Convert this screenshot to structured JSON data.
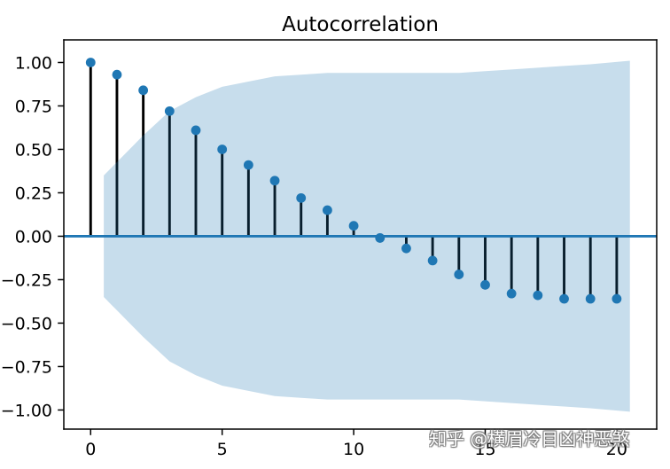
{
  "chart_data": {
    "type": "scatter",
    "stems": true,
    "title": "Autocorrelation",
    "grid": false,
    "xlim": [
      -1.02,
      21.52
    ],
    "ylim": [
      -1.11,
      1.13
    ],
    "xticks": [
      0,
      5,
      10,
      15,
      20
    ],
    "xtick_labels": [
      "0",
      "5",
      "10",
      "15",
      "20"
    ],
    "yticks": [
      1.0,
      0.75,
      0.5,
      0.25,
      0.0,
      -0.25,
      -0.5,
      -0.75,
      -1.0
    ],
    "ytick_labels": [
      "1.00",
      "0.75",
      "0.50",
      "0.25",
      "0.00",
      "−0.25",
      "−0.50",
      "−0.75",
      "−1.00"
    ],
    "x": [
      0,
      1,
      2,
      3,
      4,
      5,
      6,
      7,
      8,
      9,
      10,
      11,
      12,
      13,
      14,
      15,
      16,
      17,
      18,
      19,
      20
    ],
    "series": [
      {
        "values": [
          1.0,
          0.93,
          0.84,
          0.72,
          0.61,
          0.5,
          0.41,
          0.32,
          0.22,
          0.15,
          0.06,
          -0.01,
          -0.07,
          -0.14,
          -0.22,
          -0.28,
          -0.33,
          -0.34,
          -0.36,
          -0.36,
          -0.36
        ],
        "color": "#1f77b4",
        "stem_color": "#000000"
      }
    ],
    "zero_line": {
      "y": 0,
      "color": "#1f77b4"
    },
    "confidence_band": {
      "x": [
        0.5,
        2,
        3,
        4,
        5,
        6,
        7,
        8,
        9,
        10,
        11,
        12,
        13,
        14,
        15,
        16,
        17,
        18,
        19,
        20.5
      ],
      "upper": [
        0.35,
        0.58,
        0.72,
        0.8,
        0.86,
        0.89,
        0.92,
        0.93,
        0.94,
        0.94,
        0.94,
        0.94,
        0.94,
        0.94,
        0.95,
        0.96,
        0.97,
        0.98,
        0.99,
        1.01
      ],
      "lower": [
        -0.35,
        -0.58,
        -0.72,
        -0.8,
        -0.86,
        -0.89,
        -0.92,
        -0.93,
        -0.94,
        -0.94,
        -0.94,
        -0.94,
        -0.94,
        -0.94,
        -0.95,
        -0.96,
        -0.97,
        -0.98,
        -0.99,
        -1.01
      ],
      "color": "#1f77b4",
      "opacity": 0.25
    }
  },
  "watermark": "知乎 @横眉冷目凶神恶煞"
}
